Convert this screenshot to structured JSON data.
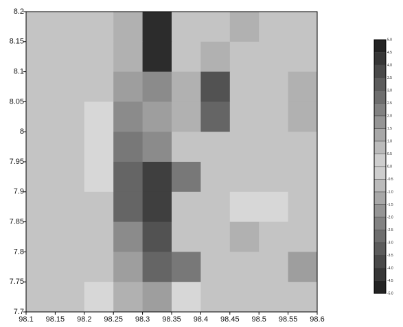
{
  "chart_data": {
    "type": "heatmap",
    "x": [
      98.125,
      98.175,
      98.225,
      98.275,
      98.325,
      98.375,
      98.425,
      98.475,
      98.525,
      98.575
    ],
    "y": [
      8.175,
      8.125,
      8.075,
      8.025,
      7.975,
      7.925,
      7.875,
      7.825,
      7.775,
      7.725
    ],
    "z": [
      [
        0.5,
        0.5,
        0.5,
        -1,
        -4.5,
        0.5,
        0.5,
        1,
        0.5,
        0.5
      ],
      [
        0.5,
        0.5,
        0.5,
        -1,
        -4.5,
        0.5,
        1,
        0.5,
        0.5,
        0.5
      ],
      [
        0.5,
        0.5,
        0.5,
        -1.5,
        -2,
        1,
        -3.5,
        0.5,
        0.5,
        1
      ],
      [
        0.5,
        0.5,
        0,
        -2,
        -1.5,
        1,
        -3,
        0.5,
        0.5,
        1
      ],
      [
        0.5,
        0.5,
        0,
        -2.5,
        -2,
        0.5,
        0.5,
        0.5,
        0.5,
        0.5
      ],
      [
        0.5,
        0.5,
        0,
        -3,
        -4,
        -2.5,
        0.5,
        0.5,
        0.5,
        0.5
      ],
      [
        0.5,
        0.5,
        -0.5,
        -3,
        -4,
        0.5,
        0.5,
        0,
        0,
        0.5
      ],
      [
        0.5,
        0.5,
        -0.5,
        -2,
        -3.5,
        0.5,
        0.5,
        -1,
        -0.5,
        -0.5
      ],
      [
        0.5,
        0.5,
        -0.5,
        -1.5,
        -3,
        -2.5,
        0.5,
        0.5,
        -0.5,
        -1.5
      ],
      [
        0.5,
        0.5,
        0,
        -1,
        -1.5,
        0,
        0.5,
        0.5,
        0.5,
        -0.5
      ]
    ],
    "xlim": [
      98.1,
      98.6
    ],
    "xticks": [
      98.1,
      98.15,
      98.2,
      98.25,
      98.3,
      98.35,
      98.4,
      98.45,
      98.5,
      98.55,
      98.6
    ],
    "ylim": [
      7.7,
      8.2
    ],
    "yticks": [
      7.7,
      7.75,
      7.8,
      7.85,
      7.9,
      7.95,
      8,
      8.05,
      8.1,
      8.15,
      8.2
    ],
    "zlim": [
      -5,
      5
    ],
    "zticks": [
      {
        "value": 5,
        "label": "5.0"
      },
      4.5,
      {
        "value": 4,
        "label": "4.0"
      },
      3.5,
      {
        "value": 3,
        "label": "3.0"
      },
      2.5,
      {
        "value": 2,
        "label": "2.0"
      },
      1.5,
      {
        "value": 1,
        "label": "1.0"
      },
      0.5,
      {
        "value": 0,
        "label": "0.0"
      },
      -0.5,
      {
        "value": -1,
        "label": "-1.0"
      },
      -1.5,
      {
        "value": -2,
        "label": "-2.0"
      },
      -2.5,
      {
        "value": -3,
        "label": "-3.0"
      },
      -3.5,
      {
        "value": -4,
        "label": "-4.0"
      },
      -4.5,
      {
        "value": -5,
        "label": "-5.0"
      }
    ]
  }
}
